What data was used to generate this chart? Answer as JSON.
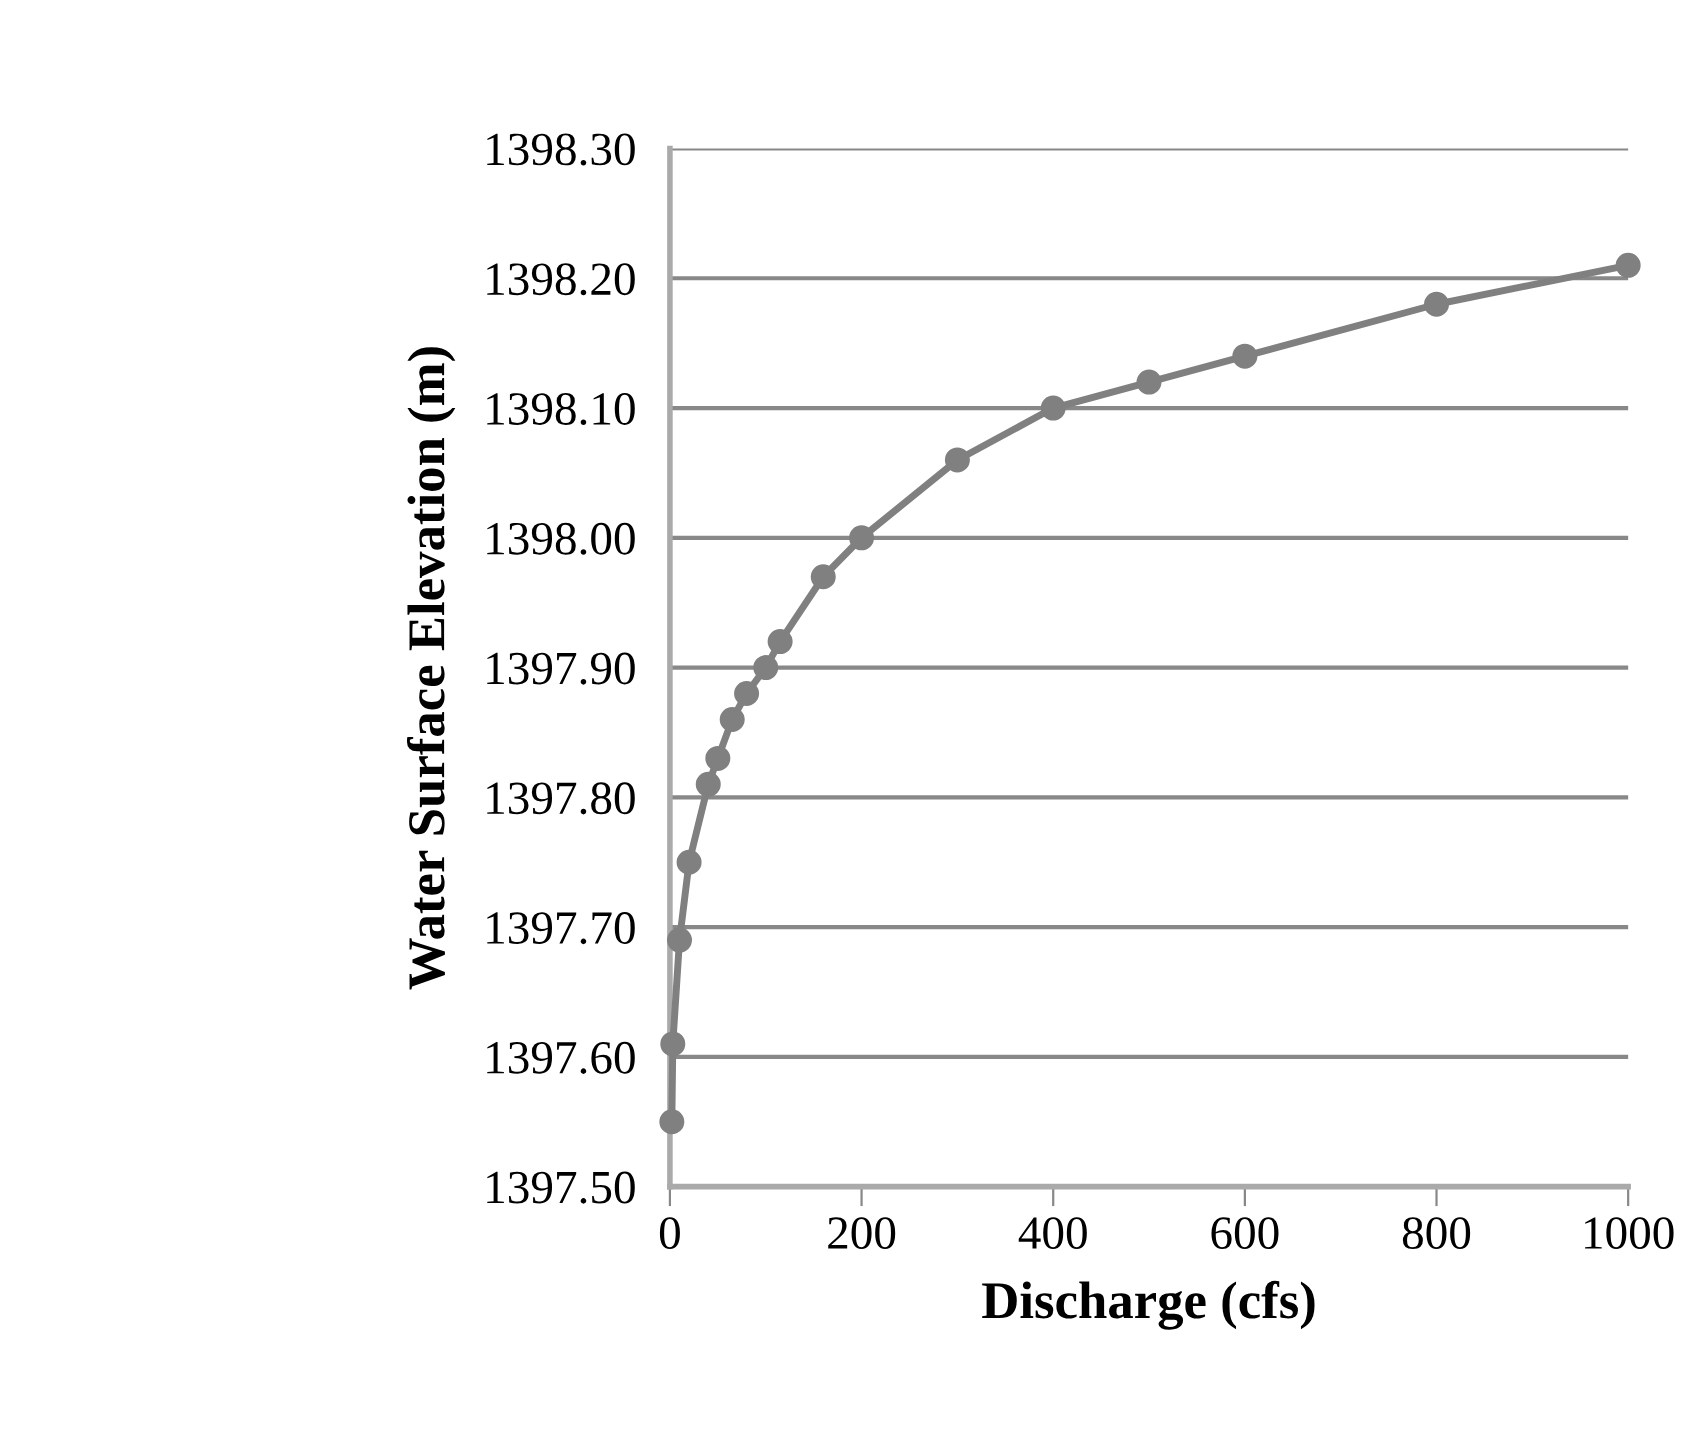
{
  "chart_data": {
    "type": "line",
    "xlabel": "Discharge (cfs)",
    "ylabel": "Water Surface Elevation (m)",
    "x": [
      2,
      3,
      10,
      20,
      40,
      50,
      65,
      80,
      100,
      115,
      160,
      200,
      300,
      400,
      500,
      600,
      800,
      1000
    ],
    "series": [
      {
        "color": "#808080",
        "values": [
          1397.55,
          1397.61,
          1397.69,
          1397.75,
          1397.81,
          1397.83,
          1397.86,
          1397.88,
          1397.9,
          1397.92,
          1397.97,
          1398.0,
          1398.06,
          1398.1,
          1398.12,
          1398.14,
          1398.18,
          1398.21
        ]
      }
    ],
    "xlim": [
      0,
      1000
    ],
    "xticks": [
      0,
      200,
      400,
      600,
      800,
      1000
    ],
    "ylim": [
      1397.5,
      1398.3
    ],
    "yticks": [
      {
        "value": 1397.5,
        "label": "1397.50"
      },
      {
        "value": 1397.6,
        "label": "1397.60"
      },
      {
        "value": 1397.7,
        "label": "1397.70"
      },
      {
        "value": 1397.8,
        "label": "1397.80"
      },
      {
        "value": 1397.9,
        "label": "1397.90"
      },
      {
        "value": 1398.0,
        "label": "1398.00"
      },
      {
        "value": 1398.1,
        "label": "1398.10"
      },
      {
        "value": 1398.2,
        "label": "1398.20"
      },
      {
        "value": 1398.3,
        "label": "1398.30"
      }
    ],
    "grid": "y",
    "marker": "circle",
    "line_style": "solid"
  }
}
